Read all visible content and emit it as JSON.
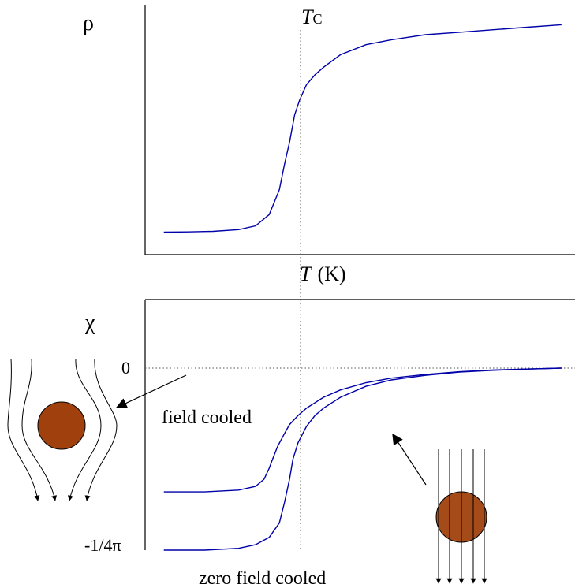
{
  "chart_data": [
    {
      "type": "line",
      "panel": "resistivity",
      "ylabel": "ρ",
      "xlabel_symbol": "T",
      "xlabel_unit": "(K)",
      "tc_symbol": "T",
      "tc_subscript": "C",
      "tc": 0.0,
      "xlim": [
        -0.85,
        1.68
      ],
      "ylim": [
        0.0,
        1.0
      ],
      "series": [
        {
          "color": "#0000aa",
          "x": [
            -0.74,
            -0.6,
            -0.45,
            -0.3,
            -0.2,
            -0.12,
            -0.06,
            -0.03,
            0.0,
            0.03,
            0.06,
            0.1,
            0.15,
            0.2,
            0.3,
            0.45,
            0.6,
            0.8,
            1.0,
            1.2,
            1.4,
            1.6
          ],
          "y": [
            0.09,
            0.091,
            0.093,
            0.1,
            0.115,
            0.16,
            0.26,
            0.36,
            0.45,
            0.56,
            0.62,
            0.68,
            0.72,
            0.75,
            0.8,
            0.84,
            0.86,
            0.88,
            0.89,
            0.9,
            0.91,
            0.92
          ]
        }
      ]
    },
    {
      "type": "line",
      "panel": "susceptibility",
      "ylabel": "χ",
      "yticks": [
        "0",
        "-1/4π"
      ],
      "tc": 0.0,
      "xlim": [
        -0.85,
        1.68
      ],
      "ylim": [
        -1.05,
        0.4
      ],
      "series": [
        {
          "name": "field cooled",
          "color": "#0000aa",
          "x": [
            -0.74,
            -0.5,
            -0.3,
            -0.2,
            -0.15,
            -0.12,
            -0.1,
            -0.07,
            -0.03,
            0.0,
            0.05,
            0.1,
            0.2,
            0.3,
            0.45,
            0.6,
            0.8,
            1.0,
            1.2,
            1.4,
            1.6
          ],
          "y": [
            -0.68,
            -0.68,
            -0.67,
            -0.65,
            -0.61,
            -0.55,
            -0.5,
            -0.43,
            -0.36,
            -0.31,
            -0.26,
            -0.22,
            -0.16,
            -0.12,
            -0.08,
            -0.055,
            -0.035,
            -0.02,
            -0.01,
            -0.005,
            0.0
          ]
        },
        {
          "name": "zero field cooled",
          "color": "#0000aa",
          "x": [
            -0.74,
            -0.5,
            -0.3,
            -0.2,
            -0.12,
            -0.06,
            -0.03,
            0.0,
            0.02,
            0.05,
            0.1,
            0.15,
            0.2,
            0.3,
            0.45,
            0.6,
            0.8,
            1.0,
            1.2,
            1.4,
            1.6
          ],
          "y": [
            -1.0,
            -1.0,
            -0.99,
            -0.97,
            -0.93,
            -0.85,
            -0.74,
            -0.61,
            -0.5,
            -0.41,
            -0.32,
            -0.26,
            -0.22,
            -0.16,
            -0.1,
            -0.065,
            -0.04,
            -0.022,
            -0.012,
            -0.005,
            0.0
          ]
        }
      ]
    }
  ],
  "insets": {
    "field_cooled": {
      "sphere_color": "#a0410d",
      "field_lines": 4
    },
    "zero_field_cooled": {
      "sphere_color": "#a0410d",
      "field_lines": 5
    }
  }
}
